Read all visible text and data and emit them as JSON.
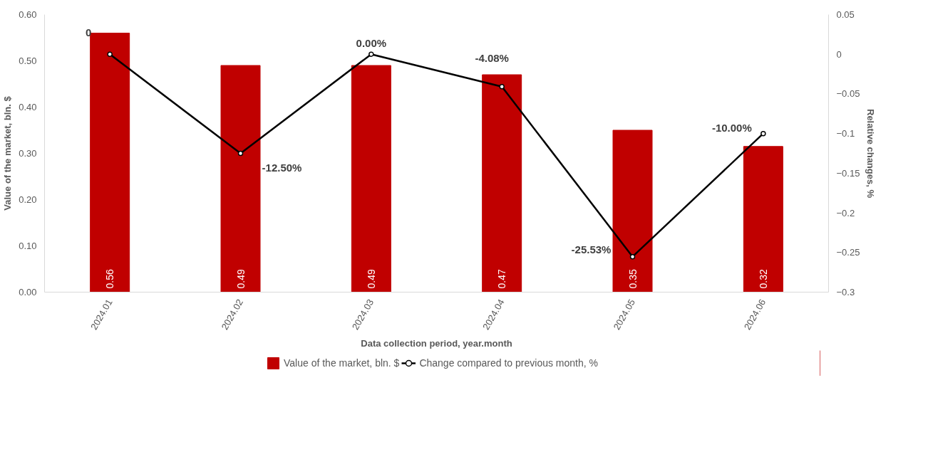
{
  "chart_data": {
    "type": "bar",
    "xlabel": "Data collection period, year.month",
    "ylabel": "Value of the market, bln. $",
    "y2label": "Relative changes, %",
    "categories": [
      "2024.01",
      "2024.02",
      "2024.03",
      "2024.04",
      "2024.05",
      "2024.06"
    ],
    "ylim": [
      0,
      0.6
    ],
    "yticks": [
      {
        "value": 0,
        "label": "0.00"
      },
      {
        "value": 0.1,
        "label": "0.10"
      },
      {
        "value": 0.2,
        "label": "0.20"
      },
      {
        "value": 0.3,
        "label": "0.30"
      },
      {
        "value": 0.4,
        "label": "0.40"
      },
      {
        "value": 0.5,
        "label": "0.50"
      },
      {
        "value": 0.6,
        "label": "0.60"
      }
    ],
    "y2lim": [
      -0.3,
      0.05
    ],
    "y2ticks": [
      -0.3,
      -0.25,
      -0.2,
      -0.15,
      -0.1,
      -0.05,
      0,
      0.05
    ],
    "grid": false,
    "legend": "bottom",
    "series": [
      {
        "name": "Value of the market, bln. $",
        "color": "#c00000",
        "values": [
          0.56,
          0.49,
          0.49,
          0.47,
          0.35,
          0.315
        ],
        "value_labels": [
          "0.56",
          "0.49",
          "0.49",
          "0.47",
          "0.35",
          "0.32"
        ]
      },
      {
        "name": "Change compared to previous month, %",
        "type": "line",
        "axis": "y2",
        "color": "#000000",
        "marker": "circle",
        "line_style": "solid",
        "values": [
          0,
          -0.125,
          0,
          -0.0408,
          -0.2553,
          -0.1
        ],
        "value_labels": [
          "0",
          "-12.50%",
          "0.00%",
          "-4.08%",
          "-25.53%",
          "-10.00%"
        ]
      }
    ]
  }
}
